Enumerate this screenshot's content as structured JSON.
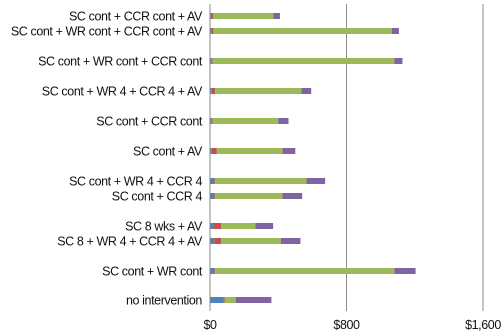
{
  "chart_data": {
    "type": "bar",
    "orientation": "horizontal",
    "stacked": true,
    "categories": [
      "SC cont + CCR cont + AV",
      "SC cont + WR cont + CCR cont + AV",
      "SC cont + WR cont + CCR cont",
      "SC cont + WR 4 + CCR 4 + AV",
      "SC cont + CCR cont",
      "SC cont + AV",
      "SC cont + WR 4 + CCR 4",
      "SC cont + CCR 4",
      "SC 8 wks + AV",
      "SC 8 + WR 4 + CCR 4 + AV",
      "SC cont + WR cont",
      "no intervention"
    ],
    "series": [
      {
        "color": "#4f81bd",
        "values": [
          5,
          8,
          10,
          10,
          10,
          10,
          25,
          25,
          20,
          25,
          25,
          80
        ]
      },
      {
        "color": "#c0504d",
        "values": [
          12,
          12,
          5,
          20,
          5,
          30,
          5,
          5,
          45,
          40,
          5,
          5
        ]
      },
      {
        "color": "#9bbb59",
        "values": [
          355,
          1045,
          1065,
          505,
          385,
          385,
          535,
          395,
          200,
          350,
          1050,
          65
        ]
      },
      {
        "color": "#8064a2",
        "values": [
          38,
          42,
          48,
          58,
          60,
          75,
          110,
          115,
          105,
          115,
          125,
          210
        ]
      }
    ],
    "xlim": [
      0,
      1600
    ],
    "x_ticks": [
      {
        "value": 0,
        "label": "$0"
      },
      {
        "value": 800,
        "label": "$800"
      },
      {
        "value": 1600,
        "label": "$1,600"
      }
    ],
    "grid": true,
    "legend": "none"
  }
}
